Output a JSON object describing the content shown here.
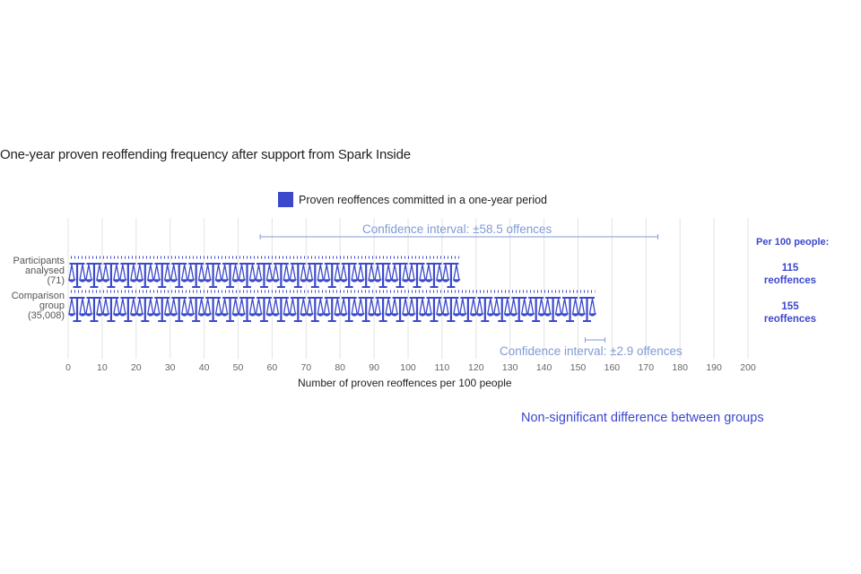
{
  "chart_data": {
    "type": "bar",
    "title": "One-year proven reoffending frequency after support from Spark Inside",
    "legend": "Proven reoffences committed in a one-year period",
    "categories": [
      [
        "Participants",
        "analysed",
        "(71)"
      ],
      [
        "Comparison",
        "group",
        "(35,008)"
      ]
    ],
    "values": [
      115,
      155
    ],
    "confidence_intervals": [
      {
        "label": "Confidence interval: ±58.5 offences",
        "value": 58.5
      },
      {
        "label": "Confidence interval: ±2.9 offences",
        "value": 2.9
      }
    ],
    "xlabel": "Number of proven reoffences per 100 people",
    "xlim": [
      0,
      200
    ],
    "xticks": [
      "0",
      "10",
      "20",
      "30",
      "40",
      "50",
      "60",
      "70",
      "80",
      "90",
      "100",
      "110",
      "120",
      "130",
      "140",
      "150",
      "160",
      "170",
      "180",
      "190",
      "200"
    ],
    "grid": true,
    "mark": "scales-of-justice-icon",
    "per_100_heading": "Per 100 people:",
    "per_100_values": [
      [
        "115",
        "reoffences"
      ],
      [
        "155",
        "reoffences"
      ]
    ],
    "footnote": "Non-significant difference between groups"
  },
  "colors": {
    "accent": "#3b48cc",
    "ci_line": "#7f9bd6",
    "grid": "#e3e3e3"
  }
}
